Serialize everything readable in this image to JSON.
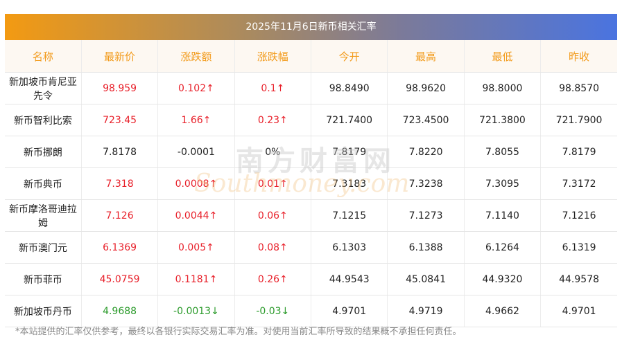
{
  "title": "2025年11月6日新币相关汇率",
  "headers": [
    "名称",
    "最新价",
    "涨跌额",
    "涨跌幅",
    "今开",
    "最高",
    "最低",
    "昨收"
  ],
  "rows": [
    {
      "name": "新加坡币肯尼亚先令",
      "price": "98.959",
      "change": "0.102↑",
      "pct": "0.1↑",
      "open": "98.8490",
      "high": "98.9620",
      "low": "98.8000",
      "prev": "98.8570",
      "trend": "up"
    },
    {
      "name": "新币智利比索",
      "price": "723.45",
      "change": "1.66↑",
      "pct": "0.23↑",
      "open": "721.7400",
      "high": "723.4500",
      "low": "721.3800",
      "prev": "721.7900",
      "trend": "up"
    },
    {
      "name": "新币挪朗",
      "price": "7.8178",
      "change": "-0.0001",
      "pct": "0%",
      "open": "7.8179",
      "high": "7.8220",
      "low": "7.8055",
      "prev": "7.8179",
      "trend": "flat"
    },
    {
      "name": "新币典币",
      "price": "7.318",
      "change": "0.0008↑",
      "pct": "0.01↑",
      "open": "7.3183",
      "high": "7.3238",
      "low": "7.3095",
      "prev": "7.3172",
      "trend": "up"
    },
    {
      "name": "新币摩洛哥迪拉姆",
      "price": "7.126",
      "change": "0.0044↑",
      "pct": "0.06↑",
      "open": "7.1215",
      "high": "7.1273",
      "low": "7.1140",
      "prev": "7.1216",
      "trend": "up"
    },
    {
      "name": "新币澳门元",
      "price": "6.1369",
      "change": "0.005↑",
      "pct": "0.08↑",
      "open": "6.1303",
      "high": "6.1388",
      "low": "6.1264",
      "prev": "6.1319",
      "trend": "up"
    },
    {
      "name": "新币菲币",
      "price": "45.0759",
      "change": "0.1181↑",
      "pct": "0.26↑",
      "open": "44.9543",
      "high": "45.0841",
      "low": "44.9320",
      "prev": "44.9578",
      "trend": "up"
    },
    {
      "name": "新加坡币丹币",
      "price": "4.9688",
      "change": "-0.0013↓",
      "pct": "-0.03↓",
      "open": "4.9701",
      "high": "4.9719",
      "low": "4.9662",
      "prev": "4.9701",
      "trend": "down"
    }
  ],
  "watermark": {
    "cn": "南方财富网",
    "en": "Southmoney.com"
  },
  "note": "*本站提供的汇率仅供参考，最终以各银行实际交易汇率为准。对使用当前汇率所导致的结果概不承担任何责任。",
  "colors": {
    "up": "#e8202a",
    "down": "#2a9a2a",
    "header_text": "#f29a1a"
  }
}
